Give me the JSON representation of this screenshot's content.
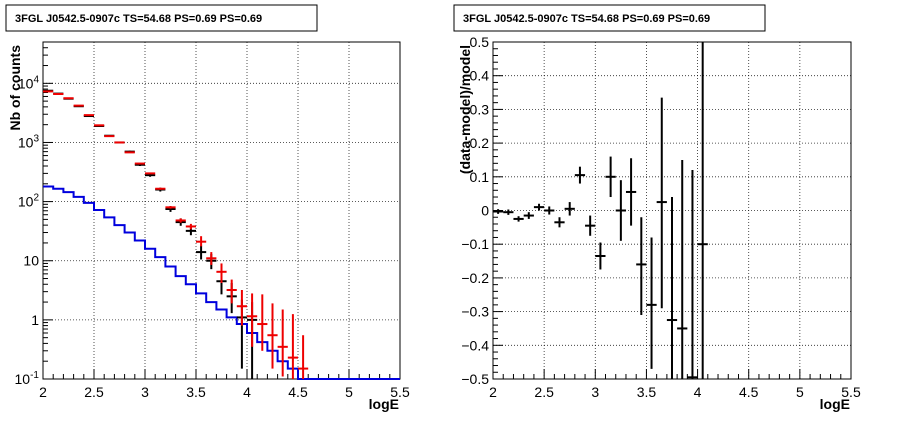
{
  "chart_data": [
    {
      "type": "line",
      "title": "3FGL J0542.5-0907c TS=54.68 PS=0.69 PS=0.69",
      "xlabel": "logE",
      "ylabel": "Nb of counts",
      "xlim": [
        2,
        5.5
      ],
      "ylim": [
        0.1,
        50000
      ],
      "ylog": true,
      "xticks": [
        "2",
        "2.5",
        "3",
        "3.5",
        "4",
        "4.5",
        "5",
        "5.5"
      ],
      "yticks": [
        "10^-1",
        "1",
        "10",
        "10^2",
        "10^3",
        "10^4"
      ],
      "grid": true,
      "colors": {
        "data": "#000000",
        "model": "#ee0000",
        "source": "#0000dd"
      },
      "bin_edges": [
        2.0,
        2.1,
        2.2,
        2.3,
        2.4,
        2.5,
        2.6,
        2.7,
        2.8,
        2.9,
        3.0,
        3.1,
        3.2,
        3.3,
        3.4,
        3.5,
        3.6,
        3.7,
        3.8,
        3.9,
        4.0,
        4.1,
        4.2,
        4.3,
        4.4,
        4.5,
        4.6,
        5.5
      ],
      "series": [
        {
          "role": "data",
          "x": [
            2.05,
            2.15,
            2.25,
            2.35,
            2.45,
            2.55,
            2.65,
            2.75,
            2.85,
            2.95,
            3.05,
            3.15,
            3.25,
            3.35,
            3.45,
            3.55,
            3.65,
            3.75,
            3.85,
            3.95,
            4.05
          ],
          "y": [
            7500,
            6700,
            5500,
            4100,
            2800,
            1900,
            1300,
            1000,
            700,
            420,
            280,
            160,
            75,
            45,
            32,
            14,
            10,
            4.5,
            2.5,
            1.1,
            1.0
          ],
          "yerr_low": [
            7400,
            6600,
            5400,
            4030,
            2750,
            1860,
            1270,
            970,
            675,
            400,
            263,
            148,
            67,
            39,
            27,
            10.5,
            7.2,
            2.7,
            1.3,
            0.15,
            0.1
          ],
          "yerr_high": [
            7600,
            6800,
            5600,
            4170,
            2850,
            1940,
            1330,
            1030,
            725,
            440,
            297,
            172,
            84,
            52,
            38,
            18,
            13,
            6.7,
            4.2,
            2.2,
            2.0
          ]
        },
        {
          "role": "model",
          "x": [
            2.05,
            2.15,
            2.25,
            2.35,
            2.45,
            2.55,
            2.65,
            2.75,
            2.85,
            2.95,
            3.05,
            3.15,
            3.25,
            3.35,
            3.45,
            3.55,
            3.65,
            3.75,
            3.85,
            3.95,
            4.05,
            4.15,
            4.25,
            4.35,
            4.45,
            4.55
          ],
          "y": [
            7300,
            6600,
            5600,
            4200,
            2900,
            1950,
            1280,
            1000,
            680,
            440,
            300,
            165,
            80,
            48,
            38,
            21,
            11,
            6.5,
            3.2,
            1.7,
            1.15,
            0.85,
            0.55,
            0.35,
            0.23,
            0.15
          ],
          "yerr_low": [
            7250,
            6550,
            5550,
            4160,
            2870,
            1925,
            1260,
            985,
            668,
            430,
            292,
            159,
            76,
            44,
            34,
            17.5,
            8.5,
            4.2,
            1.9,
            0.8,
            0.35,
            0.3,
            0.15,
            0.11,
            0.1,
            0.1
          ],
          "yerr_high": [
            7350,
            6650,
            5650,
            4240,
            2930,
            1975,
            1300,
            1015,
            692,
            450,
            308,
            171,
            84,
            52,
            42,
            26,
            14,
            9,
            4.8,
            3.2,
            2.8,
            2.7,
            1.9,
            1.5,
            1.25,
            0.55
          ]
        },
        {
          "role": "source",
          "y": [
            180,
            165,
            145,
            120,
            95,
            72,
            54,
            40,
            30,
            22,
            16,
            11.5,
            8,
            5.5,
            4,
            2.8,
            2,
            1.5,
            1.1,
            0.85,
            0.6,
            0.42,
            0.3,
            0.2,
            0.15,
            0.1,
            0.1
          ]
        }
      ]
    },
    {
      "type": "scatter",
      "title": "3FGL J0542.5-0907c TS=54.68 PS=0.69 PS=0.69",
      "xlabel": "logE",
      "ylabel": "(data-model)/model",
      "xlim": [
        2,
        5.5
      ],
      "ylim": [
        -0.5,
        0.5
      ],
      "xticks": [
        "2",
        "2.5",
        "3",
        "3.5",
        "4",
        "4.5",
        "5",
        "5.5"
      ],
      "yticks": [
        "−0.5",
        "−0.4",
        "−0.3",
        "−0.2",
        "−0.1",
        "0",
        "0.1",
        "0.2",
        "0.3",
        "0.4",
        "0.5"
      ],
      "grid": true,
      "points": [
        {
          "x": 2.05,
          "y": -0.003,
          "lo": -0.01,
          "hi": 0.004
        },
        {
          "x": 2.15,
          "y": -0.005,
          "lo": -0.013,
          "hi": 0.003
        },
        {
          "x": 2.25,
          "y": -0.025,
          "lo": -0.033,
          "hi": -0.017
        },
        {
          "x": 2.35,
          "y": -0.015,
          "lo": -0.025,
          "hi": -0.005
        },
        {
          "x": 2.45,
          "y": 0.01,
          "lo": 0.0,
          "hi": 0.02
        },
        {
          "x": 2.55,
          "y": 0.0,
          "lo": -0.012,
          "hi": 0.012
        },
        {
          "x": 2.65,
          "y": -0.035,
          "lo": -0.05,
          "hi": -0.02
        },
        {
          "x": 2.75,
          "y": 0.005,
          "lo": -0.015,
          "hi": 0.025
        },
        {
          "x": 2.85,
          "y": 0.105,
          "lo": 0.08,
          "hi": 0.13
        },
        {
          "x": 2.95,
          "y": -0.045,
          "lo": -0.075,
          "hi": -0.015
        },
        {
          "x": 3.05,
          "y": -0.135,
          "lo": -0.175,
          "hi": -0.095
        },
        {
          "x": 3.15,
          "y": 0.1,
          "lo": 0.04,
          "hi": 0.16
        },
        {
          "x": 3.25,
          "y": 0.0,
          "lo": -0.09,
          "hi": 0.09
        },
        {
          "x": 3.35,
          "y": 0.055,
          "lo": -0.045,
          "hi": 0.155
        },
        {
          "x": 3.45,
          "y": -0.16,
          "lo": -0.31,
          "hi": -0.02
        },
        {
          "x": 3.55,
          "y": -0.28,
          "lo": -0.47,
          "hi": -0.08
        },
        {
          "x": 3.65,
          "y": 0.025,
          "lo": -0.29,
          "hi": 0.335
        },
        {
          "x": 3.75,
          "y": -0.325,
          "lo": -0.5,
          "hi": 0.04
        },
        {
          "x": 3.85,
          "y": -0.35,
          "lo": -0.5,
          "hi": 0.15
        },
        {
          "x": 3.95,
          "y": -0.495,
          "lo": -0.5,
          "hi": 0.12
        },
        {
          "x": 4.05,
          "y": -0.1,
          "lo": -0.5,
          "hi": 0.5
        }
      ]
    }
  ]
}
